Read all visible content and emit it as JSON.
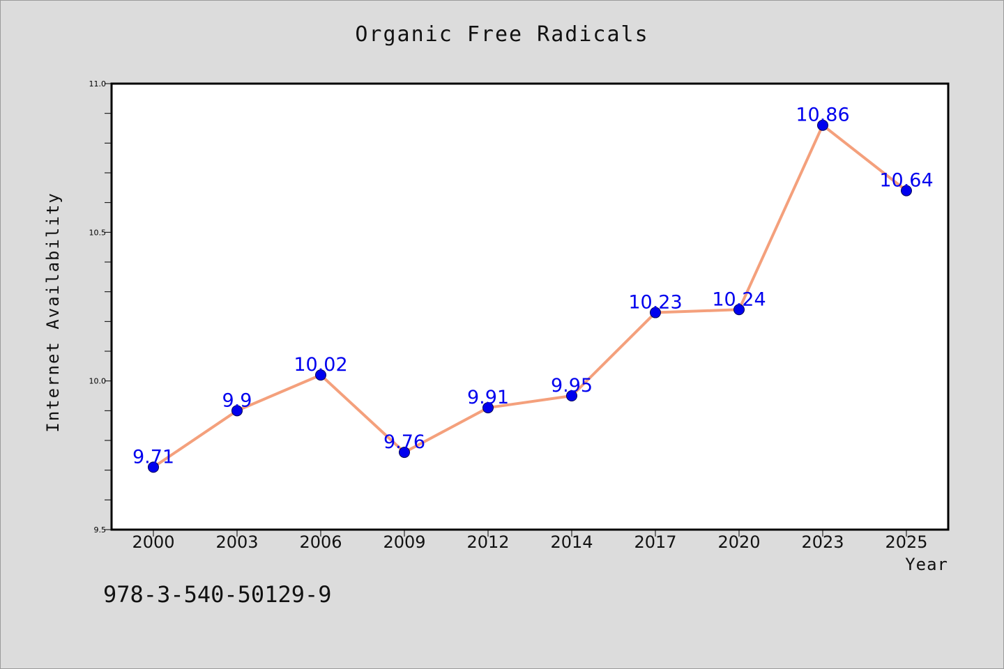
{
  "chart_data": {
    "type": "line",
    "title": "Organic Free Radicals",
    "xlabel": "Year",
    "ylabel": "Internet Availability",
    "categories": [
      "2000",
      "2003",
      "2006",
      "2009",
      "2012",
      "2014",
      "2017",
      "2020",
      "2023",
      "2025"
    ],
    "series": [
      {
        "values": [
          9.71,
          9.9,
          10.02,
          9.76,
          9.91,
          9.95,
          10.23,
          10.24,
          10.86,
          10.64
        ],
        "labels": [
          "9.71",
          "9.9",
          "10.02",
          "9.76",
          "9.91",
          "9.95",
          "10.23",
          "10.24",
          "10.86",
          "10.64"
        ],
        "line_color": "#f4a07c",
        "marker_color": "#0000ee",
        "label_color": "#0000ee"
      }
    ],
    "ylim": [
      9.5,
      11.0
    ],
    "yticks": [
      "9.5",
      "10.0",
      "10.5",
      "11.0"
    ],
    "grid": false,
    "legend": "none"
  },
  "footer": {
    "isbn": "978-3-540-50129-9"
  },
  "colors": {
    "background": "#dcdcdc",
    "plot_area": "#ffffff",
    "line": "#f4a07c",
    "marker": "#0000ee",
    "data_label": "#0000ee"
  }
}
